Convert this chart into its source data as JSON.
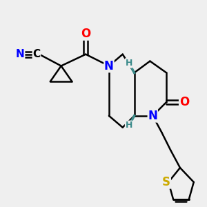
{
  "bg_color": "#efefef",
  "bond_color": "#000000",
  "bond_width": 1.8,
  "atom_colors": {
    "N": "#0000ff",
    "O": "#ff0000",
    "S": "#ccaa00",
    "C": "#000000",
    "H": "#3a8a8a"
  },
  "font_size": 11,
  "font_size_h": 9
}
